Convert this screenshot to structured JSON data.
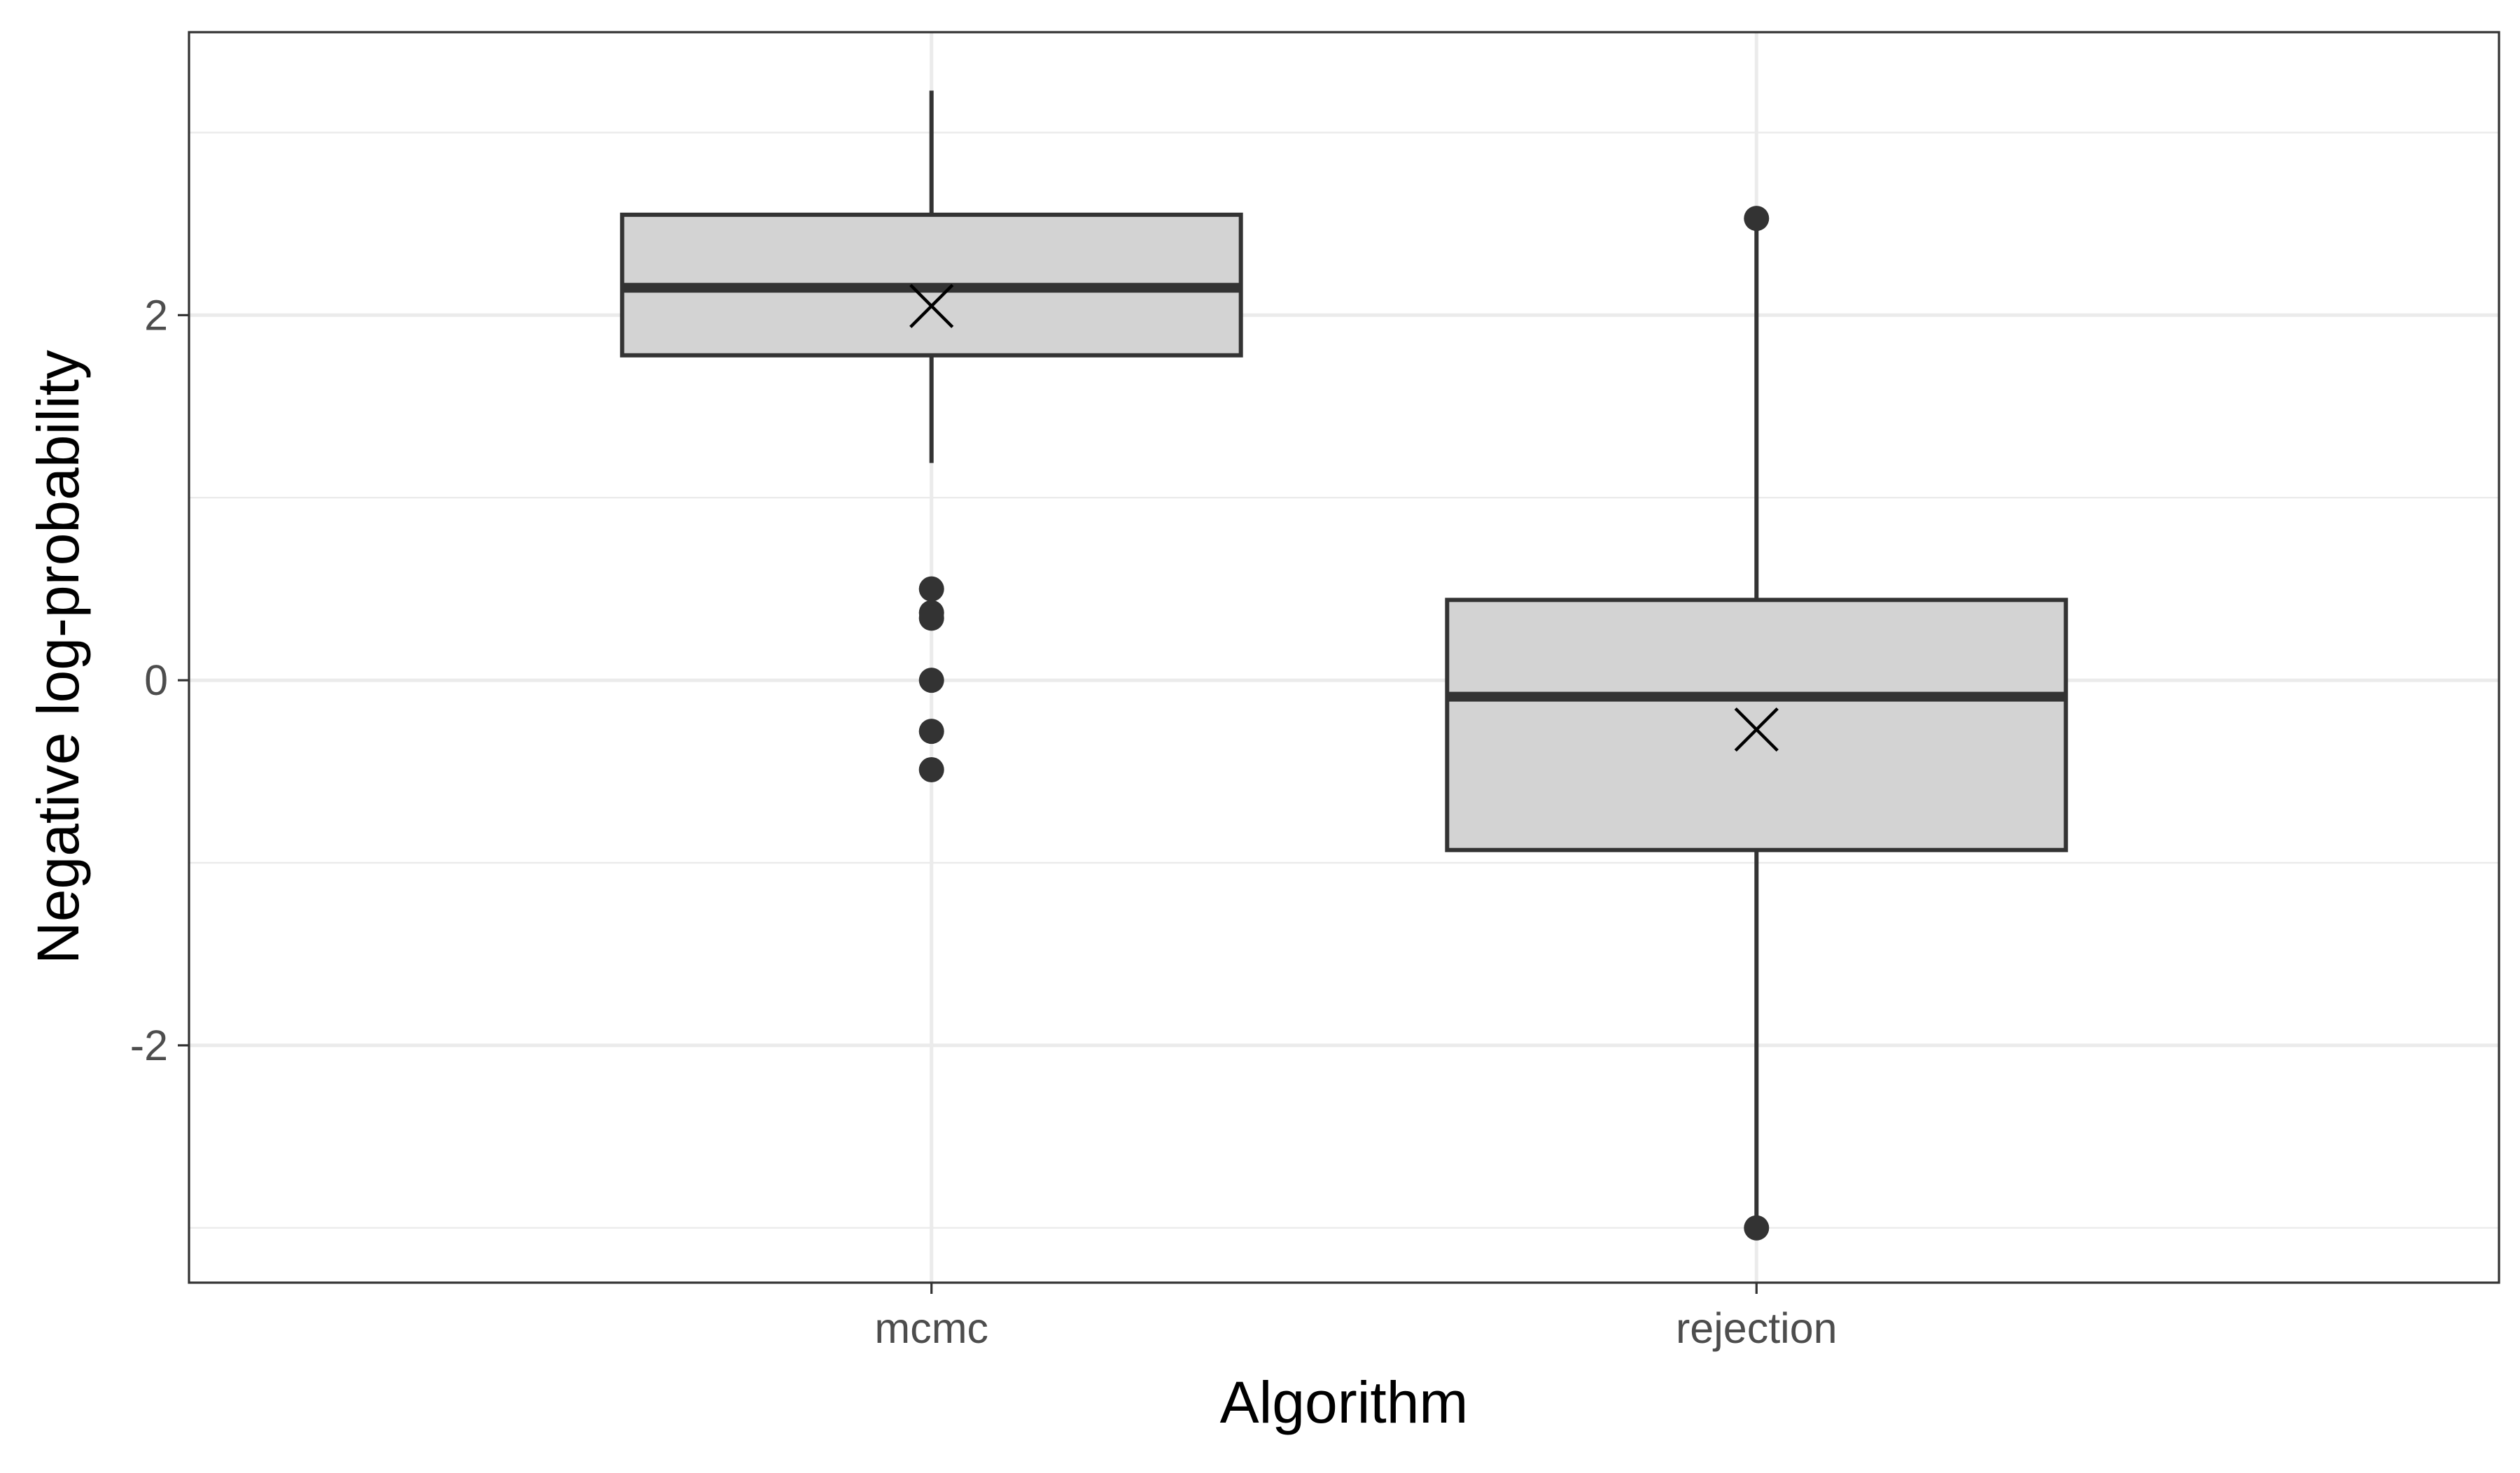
{
  "chart_data": {
    "type": "boxplot",
    "title": "",
    "xlabel": "Algorithm",
    "ylabel": "Negative log-probability",
    "categories": [
      "mcmc",
      "rejection"
    ],
    "ylim": [
      -3.3,
      3.55
    ],
    "y_major_ticks": [
      -2,
      0,
      2
    ],
    "y_tick_labels": [
      "-2",
      "0",
      "2"
    ],
    "y_minor_ticks": [
      -3,
      -1,
      1,
      3
    ],
    "grid": true,
    "legend": "none",
    "boxes": [
      {
        "category": "mcmc",
        "whisker_low": 1.19,
        "q1": 1.78,
        "median": 2.15,
        "q3": 2.55,
        "whisker_high": 3.23,
        "mean": 2.05,
        "outliers": [
          0.5,
          0.37,
          0.34,
          0.0,
          -0.28,
          -0.49
        ]
      },
      {
        "category": "rejection",
        "whisker_low": -3.0,
        "q1": -0.93,
        "median": -0.09,
        "q3": 0.44,
        "whisker_high": 2.53,
        "mean": -0.27,
        "outliers": [
          2.53,
          -3.0
        ]
      }
    ],
    "colors": {
      "box_fill": "#d3d3d3",
      "box_stroke": "#333333",
      "grid_major": "#ebebeb",
      "grid_minor": "#ebebeb",
      "panel_border": "#333333",
      "tick_text": "#4d4d4d",
      "title_text": "#000000"
    }
  }
}
